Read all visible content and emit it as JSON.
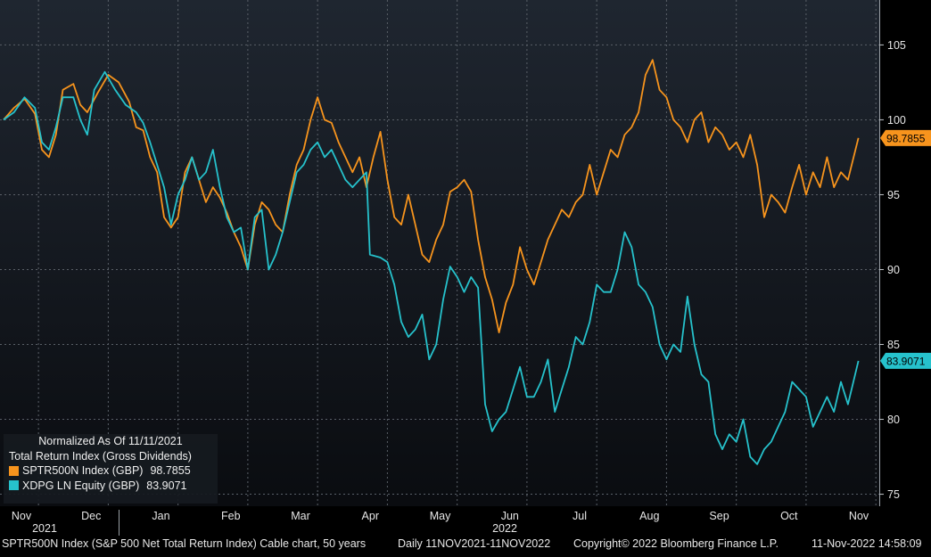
{
  "chart_data": {
    "type": "line",
    "y_axis": {
      "ticks": [
        75,
        80,
        85,
        90,
        95,
        100,
        105
      ],
      "ylim": [
        74.2,
        108
      ],
      "position": "right"
    },
    "x_axis": {
      "months": [
        "Nov",
        "Dec",
        "Jan",
        "Feb",
        "Mar",
        "Apr",
        "May",
        "Jun",
        "Jul",
        "Aug",
        "Sep",
        "Oct",
        "Nov"
      ],
      "years": [
        "2021",
        "2022"
      ],
      "xlim": [
        0,
        12.6
      ]
    },
    "series": [
      {
        "name": "SPTR500N Index (GBP)",
        "last": "98.7855",
        "color": "#f7941d",
        "points": [
          [
            0,
            100
          ],
          [
            0.15,
            100.8
          ],
          [
            0.3,
            101.4
          ],
          [
            0.45,
            100.4
          ],
          [
            0.55,
            98
          ],
          [
            0.65,
            97.5
          ],
          [
            0.75,
            99
          ],
          [
            0.85,
            102
          ],
          [
            1.0,
            102.4
          ],
          [
            1.1,
            101
          ],
          [
            1.2,
            100.5
          ],
          [
            1.35,
            101.8
          ],
          [
            1.5,
            103
          ],
          [
            1.65,
            102.5
          ],
          [
            1.8,
            101.2
          ],
          [
            1.9,
            99.5
          ],
          [
            2.0,
            99.3
          ],
          [
            2.1,
            97.5
          ],
          [
            2.2,
            96.5
          ],
          [
            2.3,
            93.5
          ],
          [
            2.4,
            92.8
          ],
          [
            2.5,
            93.5
          ],
          [
            2.6,
            96.5
          ],
          [
            2.7,
            97.5
          ],
          [
            2.8,
            96
          ],
          [
            2.9,
            94.5
          ],
          [
            3.0,
            95.5
          ],
          [
            3.1,
            94.8
          ],
          [
            3.2,
            93.8
          ],
          [
            3.3,
            92.5
          ],
          [
            3.4,
            91.5
          ],
          [
            3.5,
            90
          ],
          [
            3.6,
            93
          ],
          [
            3.7,
            94.5
          ],
          [
            3.8,
            94
          ],
          [
            3.9,
            93
          ],
          [
            4.0,
            92.5
          ],
          [
            4.1,
            95
          ],
          [
            4.2,
            97
          ],
          [
            4.3,
            98
          ],
          [
            4.4,
            100
          ],
          [
            4.5,
            101.5
          ],
          [
            4.6,
            100
          ],
          [
            4.7,
            99.8
          ],
          [
            4.8,
            98.5
          ],
          [
            4.9,
            97.5
          ],
          [
            5.0,
            96.5
          ],
          [
            5.1,
            97.5
          ],
          [
            5.2,
            95.5
          ],
          [
            5.3,
            97.5
          ],
          [
            5.4,
            99.2
          ],
          [
            5.5,
            96
          ],
          [
            5.6,
            93.5
          ],
          [
            5.7,
            93
          ],
          [
            5.8,
            95
          ],
          [
            5.9,
            93
          ],
          [
            6.0,
            91
          ],
          [
            6.1,
            90.5
          ],
          [
            6.2,
            92
          ],
          [
            6.3,
            93
          ],
          [
            6.4,
            95.2
          ],
          [
            6.5,
            95.5
          ],
          [
            6.6,
            96
          ],
          [
            6.7,
            95.2
          ],
          [
            6.8,
            92
          ],
          [
            6.9,
            89.5
          ],
          [
            7.0,
            88
          ],
          [
            7.1,
            85.8
          ],
          [
            7.2,
            87.8
          ],
          [
            7.3,
            89
          ],
          [
            7.4,
            91.5
          ],
          [
            7.5,
            90
          ],
          [
            7.6,
            89
          ],
          [
            7.7,
            90.5
          ],
          [
            7.8,
            92
          ],
          [
            7.9,
            93
          ],
          [
            8.0,
            94
          ],
          [
            8.1,
            93.5
          ],
          [
            8.2,
            94.5
          ],
          [
            8.3,
            95
          ],
          [
            8.4,
            97
          ],
          [
            8.5,
            95
          ],
          [
            8.6,
            96.5
          ],
          [
            8.7,
            98
          ],
          [
            8.8,
            97.5
          ],
          [
            8.9,
            99
          ],
          [
            9.0,
            99.5
          ],
          [
            9.1,
            100.5
          ],
          [
            9.2,
            103
          ],
          [
            9.3,
            104
          ],
          [
            9.4,
            102
          ],
          [
            9.5,
            101.5
          ],
          [
            9.6,
            100
          ],
          [
            9.7,
            99.5
          ],
          [
            9.8,
            98.5
          ],
          [
            9.9,
            100
          ],
          [
            10.0,
            100.5
          ],
          [
            10.1,
            98.5
          ],
          [
            10.2,
            99.5
          ],
          [
            10.3,
            99
          ],
          [
            10.4,
            98
          ],
          [
            10.5,
            98.5
          ],
          [
            10.6,
            97.5
          ],
          [
            10.7,
            99
          ],
          [
            10.8,
            97
          ],
          [
            10.9,
            93.5
          ],
          [
            11.0,
            95
          ],
          [
            11.1,
            94.5
          ],
          [
            11.2,
            93.8
          ],
          [
            11.3,
            95.5
          ],
          [
            11.4,
            97
          ],
          [
            11.5,
            95
          ],
          [
            11.6,
            96.5
          ],
          [
            11.7,
            95.5
          ],
          [
            11.8,
            97.5
          ],
          [
            11.9,
            95.5
          ],
          [
            12.0,
            96.5
          ],
          [
            12.1,
            96
          ],
          [
            12.25,
            98.7855
          ]
        ]
      },
      {
        "name": "XDPG LN Equity (GBP)",
        "last": "83.9071",
        "color": "#26c2cc",
        "points": [
          [
            0,
            100
          ],
          [
            0.15,
            100.5
          ],
          [
            0.3,
            101.5
          ],
          [
            0.45,
            100.8
          ],
          [
            0.55,
            98.5
          ],
          [
            0.65,
            98
          ],
          [
            0.75,
            99.5
          ],
          [
            0.85,
            101.5
          ],
          [
            1.0,
            101.5
          ],
          [
            1.1,
            100
          ],
          [
            1.2,
            99
          ],
          [
            1.3,
            102
          ],
          [
            1.45,
            103.2
          ],
          [
            1.6,
            102
          ],
          [
            1.75,
            101
          ],
          [
            1.9,
            100.5
          ],
          [
            2.0,
            99.8
          ],
          [
            2.1,
            98.5
          ],
          [
            2.2,
            97
          ],
          [
            2.3,
            95.5
          ],
          [
            2.4,
            93
          ],
          [
            2.5,
            95
          ],
          [
            2.6,
            96
          ],
          [
            2.7,
            97.5
          ],
          [
            2.8,
            96
          ],
          [
            2.9,
            96.5
          ],
          [
            3.0,
            98
          ],
          [
            3.1,
            95.5
          ],
          [
            3.2,
            93.5
          ],
          [
            3.3,
            92.5
          ],
          [
            3.4,
            92.8
          ],
          [
            3.5,
            90
          ],
          [
            3.6,
            93.5
          ],
          [
            3.7,
            94
          ],
          [
            3.8,
            90
          ],
          [
            3.9,
            91
          ],
          [
            4.0,
            92.5
          ],
          [
            4.1,
            94.5
          ],
          [
            4.2,
            96.5
          ],
          [
            4.3,
            97
          ],
          [
            4.4,
            98
          ],
          [
            4.5,
            98.5
          ],
          [
            4.6,
            97.5
          ],
          [
            4.7,
            98
          ],
          [
            4.8,
            97
          ],
          [
            4.9,
            96
          ],
          [
            5.0,
            95.5
          ],
          [
            5.1,
            96
          ],
          [
            5.2,
            96.5
          ],
          [
            5.25,
            91
          ],
          [
            5.4,
            90.8
          ],
          [
            5.5,
            90.5
          ],
          [
            5.6,
            89
          ],
          [
            5.7,
            86.5
          ],
          [
            5.8,
            85.5
          ],
          [
            5.9,
            86
          ],
          [
            6.0,
            87
          ],
          [
            6.1,
            84
          ],
          [
            6.2,
            85
          ],
          [
            6.3,
            88
          ],
          [
            6.4,
            90.2
          ],
          [
            6.5,
            89.5
          ],
          [
            6.6,
            88.5
          ],
          [
            6.7,
            89.5
          ],
          [
            6.8,
            88.8
          ],
          [
            6.9,
            81
          ],
          [
            7.0,
            79.2
          ],
          [
            7.1,
            80
          ],
          [
            7.2,
            80.5
          ],
          [
            7.3,
            82
          ],
          [
            7.4,
            83.5
          ],
          [
            7.5,
            81.5
          ],
          [
            7.6,
            81.5
          ],
          [
            7.7,
            82.5
          ],
          [
            7.8,
            84
          ],
          [
            7.9,
            80.5
          ],
          [
            8.0,
            82
          ],
          [
            8.1,
            83.5
          ],
          [
            8.2,
            85.5
          ],
          [
            8.3,
            85
          ],
          [
            8.4,
            86.5
          ],
          [
            8.5,
            89
          ],
          [
            8.6,
            88.5
          ],
          [
            8.7,
            88.5
          ],
          [
            8.8,
            90
          ],
          [
            8.9,
            92.5
          ],
          [
            9.0,
            91.5
          ],
          [
            9.1,
            89
          ],
          [
            9.2,
            88.5
          ],
          [
            9.3,
            87.5
          ],
          [
            9.4,
            85
          ],
          [
            9.5,
            84
          ],
          [
            9.6,
            85
          ],
          [
            9.7,
            84.5
          ],
          [
            9.8,
            88.2
          ],
          [
            9.9,
            85
          ],
          [
            10.0,
            83
          ],
          [
            10.1,
            82.5
          ],
          [
            10.2,
            79
          ],
          [
            10.3,
            78
          ],
          [
            10.4,
            79
          ],
          [
            10.5,
            78.5
          ],
          [
            10.6,
            80
          ],
          [
            10.7,
            77.5
          ],
          [
            10.8,
            77
          ],
          [
            10.9,
            78
          ],
          [
            11.0,
            78.5
          ],
          [
            11.1,
            79.5
          ],
          [
            11.2,
            80.5
          ],
          [
            11.3,
            82.5
          ],
          [
            11.4,
            82
          ],
          [
            11.5,
            81.5
          ],
          [
            11.6,
            79.5
          ],
          [
            11.7,
            80.5
          ],
          [
            11.8,
            81.5
          ],
          [
            11.9,
            80.5
          ],
          [
            12.0,
            82.5
          ],
          [
            12.1,
            81
          ],
          [
            12.25,
            83.9071
          ]
        ]
      }
    ],
    "legend": {
      "header1": "Normalized As Of 11/11/2021",
      "header2": "Total Return Index (Gross Dividends)",
      "placement": "bottom-left"
    }
  },
  "footer": {
    "description": "SPTR500N Index (S&P 500 Net Total Return Index) Cable chart, 50 years",
    "range": "Daily 11NOV2021-11NOV2022",
    "copyright": "Copyright© 2022 Bloomberg Finance L.P.",
    "timestamp": "11-Nov-2022 14:58:09"
  },
  "colors": {
    "background_top": "#1f2630",
    "background_bottom": "#0a0c10",
    "grid": "#5a6068",
    "axis_text": "#e6e6e6"
  }
}
